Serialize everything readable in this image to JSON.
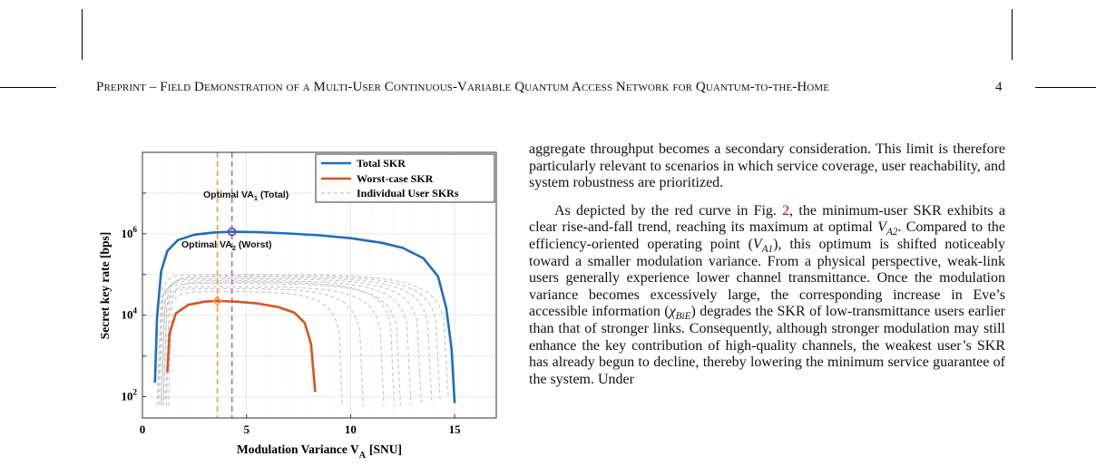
{
  "header": {
    "running_title": "Preprint – Field Demonstration of a Multi-User Continuous-Variable Quantum Access Network for Quantum-to-the-Home",
    "page_number": "4"
  },
  "figure": {
    "chart_data": {
      "type": "line",
      "xlabel": "Modulation Variance V",
      "xlabel_sub": "A",
      "xlabel_unit": "[SNU]",
      "ylabel": "Secret key rate [bps]",
      "y_scale": "log",
      "xlim": [
        0,
        17
      ],
      "ylim": [
        30,
        100000000
      ],
      "x_ticks": [
        "0",
        "5",
        "10",
        "15"
      ],
      "y_ticks": [
        {
          "base": "10",
          "exp": "2",
          "value": 100
        },
        {
          "base": "10",
          "exp": "4",
          "value": 10000
        },
        {
          "base": "10",
          "exp": "6",
          "value": 1000000
        }
      ],
      "grid": true,
      "legend_position": "top-right",
      "legend": [
        "Total SKR",
        "Worst-case SKR",
        "Individual User SKRs"
      ],
      "series": [
        {
          "name": "Total SKR",
          "color": "#1f6fba",
          "style": "solid",
          "points": [
            [
              0.6,
              220
            ],
            [
              0.7,
              9000
            ],
            [
              0.9,
              120000
            ],
            [
              1.2,
              380000
            ],
            [
              1.7,
              700000
            ],
            [
              2.5,
              950000
            ],
            [
              3.5,
              1080000
            ],
            [
              4.3,
              1120000
            ],
            [
              5.5,
              1100000
            ],
            [
              7,
              1020000
            ],
            [
              8.5,
              920000
            ],
            [
              10,
              780000
            ],
            [
              11.5,
              600000
            ],
            [
              12.5,
              450000
            ],
            [
              13.5,
              250000
            ],
            [
              14.2,
              90000
            ],
            [
              14.6,
              15000
            ],
            [
              14.85,
              1500
            ],
            [
              15.0,
              70
            ]
          ]
        },
        {
          "name": "Worst-case SKR",
          "color": "#d9541f",
          "style": "solid",
          "points": [
            [
              1.2,
              400
            ],
            [
              1.3,
              3500
            ],
            [
              1.6,
              11000
            ],
            [
              2.2,
              18000
            ],
            [
              3.0,
              21500
            ],
            [
              3.6,
              22500
            ],
            [
              4.5,
              21500
            ],
            [
              5.5,
              19500
            ],
            [
              6.5,
              16000
            ],
            [
              7.3,
              11500
            ],
            [
              7.8,
              6500
            ],
            [
              8.1,
              2000
            ],
            [
              8.3,
              130
            ]
          ]
        },
        {
          "name": "Individual User SKRs",
          "color": "#c4c4c4",
          "style": "dashed",
          "curves": [
            {
              "start": 0.7,
              "end": 12.4,
              "peak": 60000
            },
            {
              "start": 0.8,
              "end": 12.9,
              "peak": 70000
            },
            {
              "start": 0.9,
              "end": 13.4,
              "peak": 78000
            },
            {
              "start": 1.0,
              "end": 13.9,
              "peak": 85000
            },
            {
              "start": 1.1,
              "end": 14.3,
              "peak": 92000
            },
            {
              "start": 0.9,
              "end": 11.6,
              "peak": 50000
            },
            {
              "start": 1.0,
              "end": 10.6,
              "peak": 45000
            },
            {
              "start": 1.15,
              "end": 9.6,
              "peak": 38000
            },
            {
              "start": 1.25,
              "end": 12.1,
              "peak": 65000
            },
            {
              "start": 0.75,
              "end": 14.7,
              "peak": 100000
            }
          ]
        }
      ],
      "vlines": [
        {
          "x": 3.6,
          "color": "#f0a040"
        },
        {
          "x": 4.3,
          "color": "#a070c8"
        }
      ],
      "markers": [
        {
          "x": 4.3,
          "y": 1120000,
          "color": "#6a3fa0",
          "shape": "circle"
        },
        {
          "x": 3.6,
          "y": 22500,
          "color": "#f0a040",
          "shape": "diamond"
        }
      ],
      "annotations": [
        {
          "text": "Optimal VA",
          "sub": "1",
          "suffix": " (Total)"
        },
        {
          "text": "Optimal VA",
          "sub": "2",
          "suffix": " (Worst)"
        }
      ]
    }
  },
  "body": {
    "p1": "aggregate throughput becomes a secondary consideration. This limit is therefore particularly relevant to scenarios in which service coverage, user reachability, and system robustness are prioritized.",
    "p2_a": "As depicted by the red curve in Fig. ",
    "p2_ref": "2",
    "p2_b": ", the minimum-user SKR exhibits a clear rise-and-fall trend, reaching its maximum at optimal ",
    "v_sym": "V",
    "v_sub_a2": "A2",
    "p2_c": ". Compared to the efficiency-oriented operating point (",
    "v_sub_a1": "A1",
    "p2_d": "), this optimum is shifted noticeably toward a smaller modulation variance. From a physical perspective, weak-link users generally experience lower channel transmittance. Once the modulation variance becomes excessively large, the corresponding increase in Eve’s accessible information (",
    "chi_sym": "χ",
    "chi_sub": "BiE",
    "p2_e": ") degrades the SKR of low-transmittance users earlier than that of stronger links. Consequently, although stronger modulation may still enhance the key contribution of high-quality channels, the weakest user’s SKR has already begun to decline, thereby lowering the minimum service guarantee of the system. Under"
  }
}
